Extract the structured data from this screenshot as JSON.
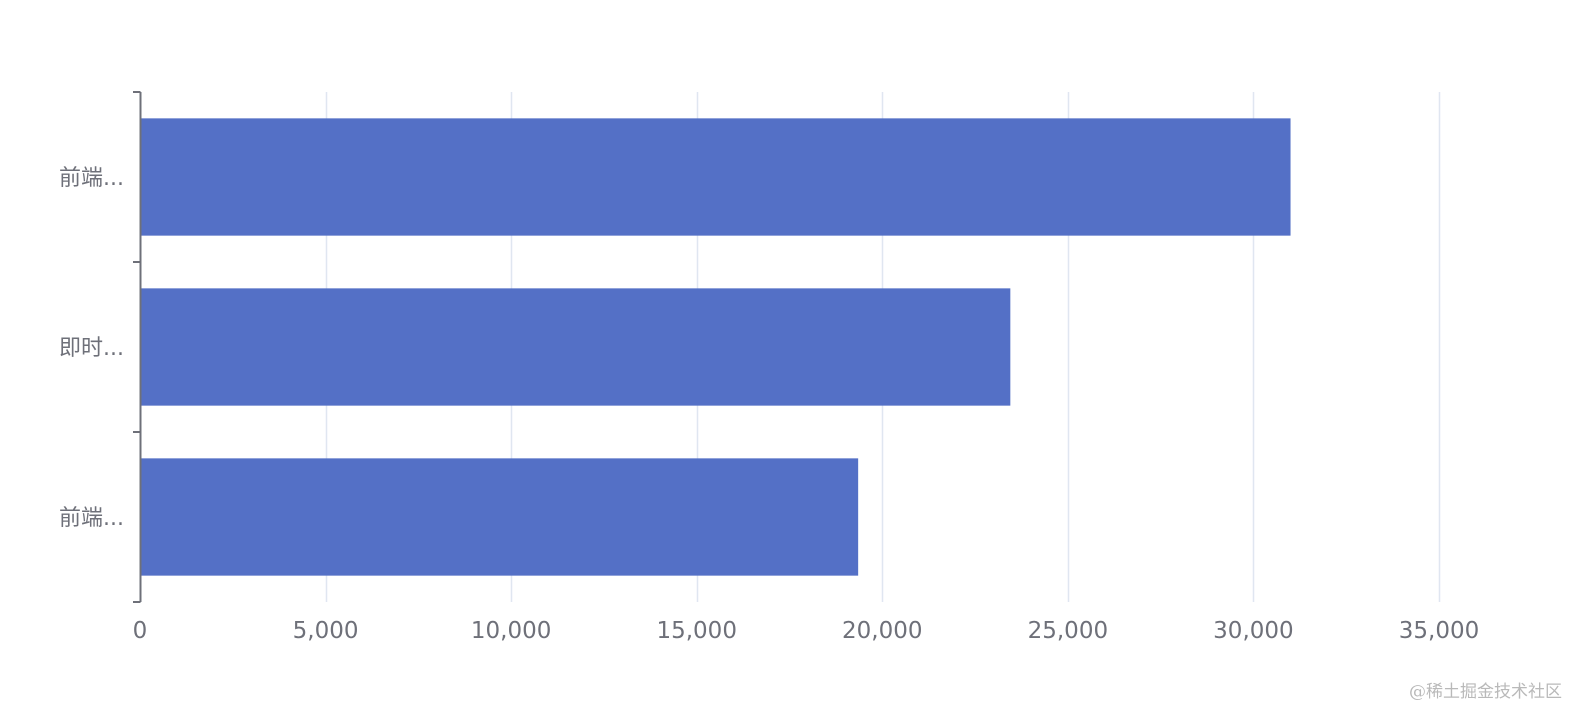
{
  "chart_data": {
    "type": "bar",
    "orientation": "horizontal",
    "categories": [
      "前端...",
      "即时...",
      "前端..."
    ],
    "values": [
      31000,
      23450,
      19350
    ],
    "xlim": [
      0,
      35000
    ],
    "xticks": [
      0,
      5000,
      10000,
      15000,
      20000,
      25000,
      30000,
      35000
    ],
    "xtick_labels": [
      "0",
      "5,000",
      "10,000",
      "15,000",
      "20,000",
      "25,000",
      "30,000",
      "35,000"
    ],
    "title": "",
    "xlabel": "",
    "ylabel": "",
    "grid": "vertical",
    "legend": "none",
    "colors": {
      "bar": "#5470c6",
      "grid": "#e0e6f1",
      "axis": "#6e7079",
      "text": "#6e7079"
    }
  },
  "watermark": "@稀土掘金技术社区"
}
